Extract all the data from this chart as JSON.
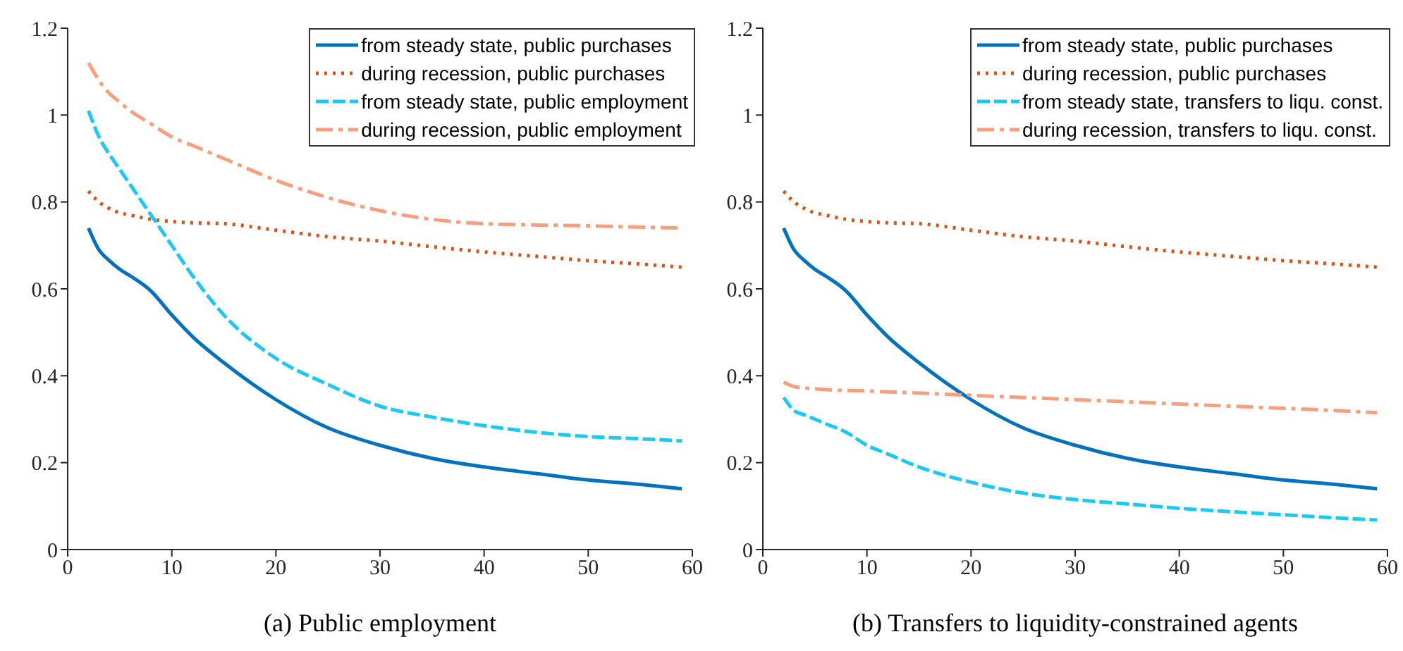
{
  "chart_data": [
    {
      "type": "line",
      "xlabel": "(a) Public employment",
      "xlim": [
        0,
        60
      ],
      "xticks": [
        0,
        10,
        20,
        30,
        40,
        50,
        60
      ],
      "ylim": [
        0,
        1.2
      ],
      "yticks": [
        0,
        0.2,
        0.4,
        0.6,
        0.8,
        1,
        1.2
      ],
      "legend": "top right",
      "grid": false,
      "x": [
        2,
        3,
        4,
        5,
        6,
        8,
        10,
        12,
        15,
        20,
        25,
        30,
        35,
        40,
        45,
        50,
        55,
        59
      ],
      "series": [
        {
          "name": "from steady state, public purchases",
          "color": "#0072bd",
          "line_style": "solid",
          "values": [
            0.74,
            0.69,
            0.665,
            0.645,
            0.63,
            0.595,
            0.54,
            0.49,
            0.43,
            0.345,
            0.28,
            0.24,
            0.21,
            0.19,
            0.175,
            0.16,
            0.15,
            0.14
          ]
        },
        {
          "name": "during recession, public purchases",
          "color": "#d95319",
          "line_style": "dotted",
          "values": [
            0.825,
            0.8,
            0.785,
            0.775,
            0.77,
            0.76,
            0.755,
            0.752,
            0.75,
            0.735,
            0.72,
            0.71,
            0.697,
            0.685,
            0.675,
            0.665,
            0.657,
            0.65
          ]
        },
        {
          "name": "from steady state, public employment",
          "color": "#1ec8f5",
          "line_style": "dashed",
          "values": [
            1.01,
            0.95,
            0.91,
            0.875,
            0.84,
            0.77,
            0.7,
            0.63,
            0.54,
            0.44,
            0.38,
            0.33,
            0.305,
            0.285,
            0.27,
            0.26,
            0.255,
            0.25
          ]
        },
        {
          "name": "during recession, public employment",
          "color": "#f8a07e",
          "line_style": "dashdot",
          "values": [
            1.12,
            1.08,
            1.05,
            1.03,
            1.01,
            0.98,
            0.95,
            0.93,
            0.9,
            0.85,
            0.81,
            0.78,
            0.76,
            0.75,
            0.747,
            0.745,
            0.742,
            0.74
          ]
        }
      ]
    },
    {
      "type": "line",
      "xlabel": "(b) Transfers to liquidity-constrained agents",
      "xlim": [
        0,
        60
      ],
      "xticks": [
        0,
        10,
        20,
        30,
        40,
        50,
        60
      ],
      "ylim": [
        0,
        1.2
      ],
      "yticks": [
        0,
        0.2,
        0.4,
        0.6,
        0.8,
        1,
        1.2
      ],
      "legend": "top right",
      "grid": false,
      "x": [
        2,
        3,
        4,
        5,
        6,
        8,
        10,
        12,
        15,
        20,
        25,
        30,
        35,
        40,
        45,
        50,
        55,
        59
      ],
      "series": [
        {
          "name": "from steady state, public purchases",
          "color": "#0072bd",
          "line_style": "solid",
          "values": [
            0.74,
            0.69,
            0.665,
            0.645,
            0.63,
            0.595,
            0.54,
            0.49,
            0.43,
            0.345,
            0.28,
            0.24,
            0.21,
            0.19,
            0.175,
            0.16,
            0.15,
            0.14
          ]
        },
        {
          "name": "during recession, public purchases",
          "color": "#d95319",
          "line_style": "dotted",
          "values": [
            0.825,
            0.8,
            0.785,
            0.775,
            0.77,
            0.76,
            0.755,
            0.752,
            0.75,
            0.735,
            0.72,
            0.71,
            0.697,
            0.685,
            0.675,
            0.665,
            0.657,
            0.65
          ]
        },
        {
          "name": "from steady state, transfers to liqu. const.",
          "color": "#1ec8f5",
          "line_style": "dashed",
          "values": [
            0.35,
            0.32,
            0.31,
            0.3,
            0.29,
            0.27,
            0.24,
            0.22,
            0.19,
            0.155,
            0.13,
            0.115,
            0.105,
            0.095,
            0.087,
            0.08,
            0.073,
            0.068
          ]
        },
        {
          "name": "during recession, transfers to liqu. const.",
          "color": "#f8a07e",
          "line_style": "dashdot",
          "values": [
            0.385,
            0.375,
            0.372,
            0.37,
            0.368,
            0.366,
            0.365,
            0.363,
            0.36,
            0.355,
            0.35,
            0.345,
            0.34,
            0.335,
            0.33,
            0.325,
            0.32,
            0.315
          ]
        }
      ]
    }
  ]
}
